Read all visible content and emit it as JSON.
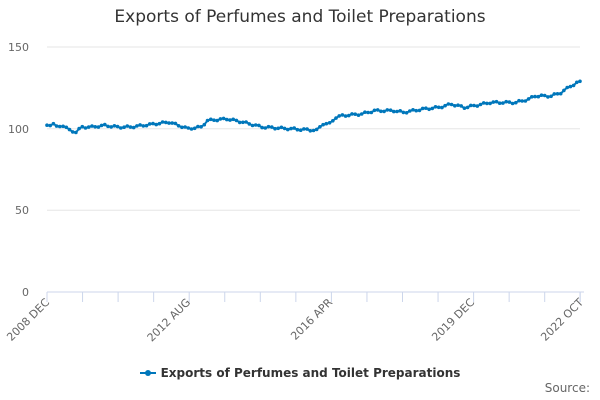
{
  "chart_data": {
    "type": "line",
    "title": "Exports of Perfumes and Toilet Preparations",
    "xlabel": "",
    "ylabel": "",
    "ylim": [
      0,
      150
    ],
    "yticks": [
      0,
      50,
      100,
      150
    ],
    "xtick_labels": [
      "2008 DEC",
      "2012 AUG",
      "2016 APR",
      "2019 DEC",
      "2022 OCT"
    ],
    "grid": true,
    "legend_position": "bottom",
    "color": "#0077bb",
    "series": [
      {
        "name": "Exports of Perfumes and Toilet Preparations",
        "points": [
          [
            "2008 DEC",
            102
          ],
          [
            "2009 FEB",
            103
          ],
          [
            "2009 MAR",
            101
          ],
          [
            "2009 MAY",
            102
          ],
          [
            "2009 JUL",
            99
          ],
          [
            "2009 SEP",
            98
          ],
          [
            "2009 NOV",
            101
          ],
          [
            "2010 FEB",
            101
          ],
          [
            "2010 JUN",
            102
          ],
          [
            "2010 OCT",
            101
          ],
          [
            "2011 FEB",
            101
          ],
          [
            "2011 JUN",
            102
          ],
          [
            "2011 OCT",
            103
          ],
          [
            "2012 FEB",
            104
          ],
          [
            "2012 MAY",
            102
          ],
          [
            "2012 AUG",
            100
          ],
          [
            "2012 DEC",
            101
          ],
          [
            "2013 FEB",
            105
          ],
          [
            "2013 AUG",
            106
          ],
          [
            "2014 JAN",
            104
          ],
          [
            "2014 JUL",
            101
          ],
          [
            "2015 MAR",
            100
          ],
          [
            "2015 DEC",
            99
          ],
          [
            "2016 FEB",
            103
          ],
          [
            "2016 APR",
            103
          ],
          [
            "2016 JUN",
            107
          ],
          [
            "2016 AUG",
            108
          ],
          [
            "2017 FEB",
            109
          ],
          [
            "2017 JUN",
            111
          ],
          [
            "2017 DEC",
            111
          ],
          [
            "2018 MAR",
            110
          ],
          [
            "2018 SEP",
            112
          ],
          [
            "2019 FEB",
            113
          ],
          [
            "2019 JUN",
            115
          ],
          [
            "2019 OCT",
            113
          ],
          [
            "2020 JAN",
            114
          ],
          [
            "2020 JUN",
            116
          ],
          [
            "2021 FEB",
            116
          ],
          [
            "2021 JUN",
            118
          ],
          [
            "2021 AUG",
            120
          ],
          [
            "2022 JAN",
            120
          ],
          [
            "2022 APR",
            122
          ],
          [
            "2022 JUL",
            126
          ],
          [
            "2022 OCT",
            129
          ]
        ]
      }
    ]
  },
  "chart": {
    "title": "Exports of Perfumes and Toilet Preparations",
    "legend_label": "Exports of Perfumes and Toilet Preparations",
    "source_label": "Source:",
    "y_labels": [
      "150",
      "100",
      "50",
      "0"
    ],
    "x_labels": [
      "2008 DEC",
      "2012 AUG",
      "2016 APR",
      "2019 DEC",
      "2022 OCT"
    ]
  }
}
